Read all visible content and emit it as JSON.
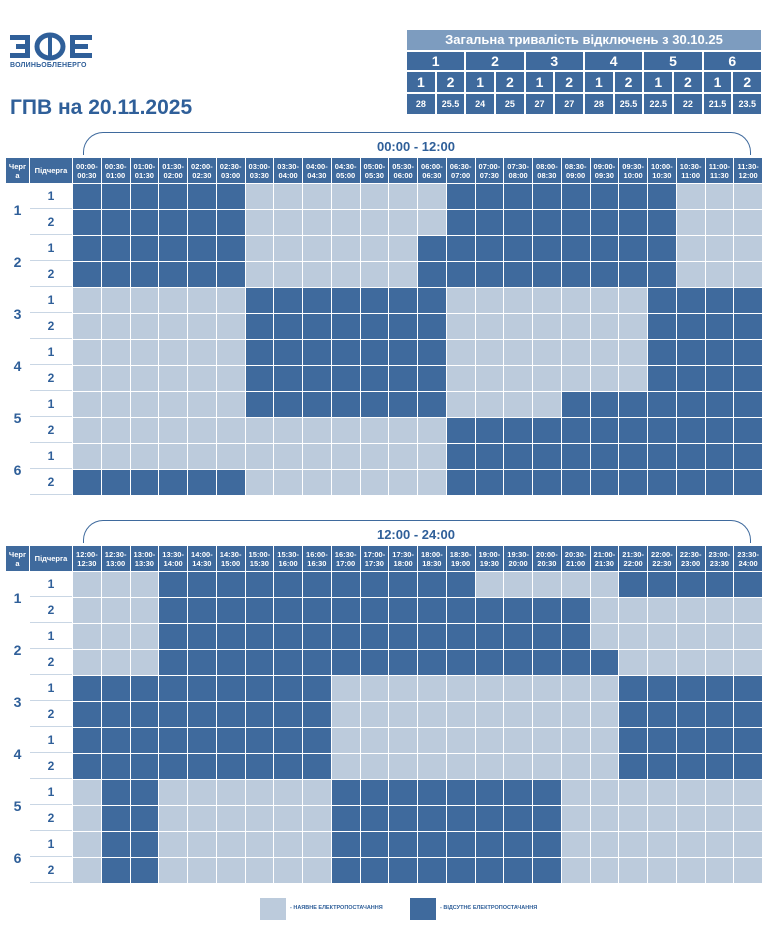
{
  "header": {
    "logo_text": "ВОЛИНЬОБЛЕНЕРГО",
    "title": "ГПВ на 20.11.2025",
    "colors": {
      "primary": "#3f6a9d",
      "light": "#bccbdc",
      "title_bar": "#7d9cbf"
    }
  },
  "summary": {
    "title": "Загальна тривалість відключень з 30.10.25",
    "groups": [
      "1",
      "2",
      "3",
      "4",
      "5",
      "6"
    ],
    "subgroups": [
      "1",
      "2",
      "1",
      "2",
      "1",
      "2",
      "1",
      "2",
      "1",
      "2",
      "1",
      "2"
    ],
    "values": [
      "28",
      "25.5",
      "24",
      "25",
      "27",
      "27",
      "28",
      "25.5",
      "22.5",
      "22",
      "21.5",
      "23.5"
    ]
  },
  "table": {
    "queue_header": "Черг а",
    "subqueue_header": "Підчерга",
    "queues": [
      "1",
      "2",
      "3",
      "4",
      "5",
      "6"
    ],
    "subqueues": [
      "1",
      "2"
    ]
  },
  "morning": {
    "label": "00:00 - 12:00",
    "times": [
      "00:00- 00:30",
      "00:30- 01:00",
      "01:00- 01:30",
      "01:30- 02:00",
      "02:00- 02:30",
      "02:30- 03:00",
      "03:00- 03:30",
      "03:30- 04:00",
      "04:00- 04:30",
      "04:30- 05:00",
      "05:00- 05:30",
      "05:30- 06:00",
      "06:00- 06:30",
      "06:30- 07:00",
      "07:00- 07:30",
      "07:30- 08:00",
      "08:00- 08:30",
      "08:30- 09:00",
      "09:00- 09:30",
      "09:30- 10:00",
      "10:00- 10:30",
      "10:30- 11:00",
      "11:00- 11:30",
      "11:30- 12:00"
    ],
    "rows": [
      "111111000000011111111000",
      "111111000000011111111000",
      "111111000000111111111000",
      "111111000000111111111000",
      "000000111111100000001111",
      "000000111111100000001111",
      "000000111111100000001111",
      "000000111111100000001111",
      "000000111111100001111111",
      "000000000000011111111111",
      "000000000000011111111111",
      "111111000000011111111111"
    ]
  },
  "evening": {
    "label": "12:00 - 24:00",
    "times": [
      "12:00- 12:30",
      "12:30- 13:00",
      "13:00- 13:30",
      "13:30- 14:00",
      "14:00- 14:30",
      "14:30- 15:00",
      "15:00- 15:30",
      "15:30- 16:00",
      "16:00- 16:30",
      "16:30- 17:00",
      "17:00- 17:30",
      "17:30- 18:00",
      "18:00- 18:30",
      "18:30- 19:00",
      "19:00- 19:30",
      "19:30- 20:00",
      "20:00- 20:30",
      "20:30- 21:00",
      "21:00- 21:30",
      "21:30- 22:00",
      "22:00- 22:30",
      "22:30- 23:00",
      "23:00- 23:30",
      "23:30- 24:00"
    ],
    "rows": [
      "000111111111110000011111",
      "000111111111111111000000",
      "000111111111111111000000",
      "000111111111111111100000",
      "111111111000000000011111",
      "111111111000000000011111",
      "111111111000000000011111",
      "111111111000000000011111",
      "011000000111111110000000",
      "011000000111111110000000",
      "011000000111111110000000",
      "011000000111111110000000"
    ]
  },
  "legend": {
    "available": "- НАЯВНЕ ЕЛЕКТРОПОСТАЧАННЯ",
    "absent": "- ВІДСУТНЄ ЕЛЕКТРОПОСТАЧАННЯ"
  }
}
